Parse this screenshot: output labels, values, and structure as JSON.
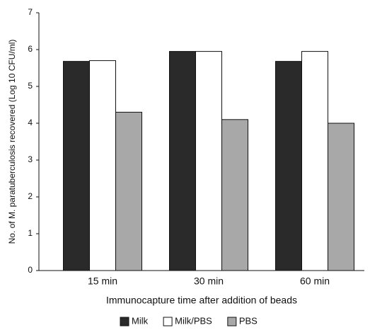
{
  "chart_data": {
    "type": "bar",
    "ylabel": "No. of M. paratuberculosis recovered (Log 10 CFU/ml)",
    "xlabel": "Immunocapture time after addition of beads",
    "categories": [
      "15 min",
      "30 min",
      "60 min"
    ],
    "series": [
      {
        "name": "Milk",
        "color": "#2a2a2a",
        "values": [
          5.68,
          5.95,
          5.68
        ]
      },
      {
        "name": "Milk/PBS",
        "color": "#ffffff",
        "values": [
          5.7,
          5.95,
          5.95
        ]
      },
      {
        "name": "PBS",
        "color": "#a8a8a8",
        "values": [
          4.3,
          4.1,
          4.0
        ]
      }
    ],
    "ylim": [
      0,
      7
    ],
    "yticks": [
      0,
      1,
      2,
      3,
      4,
      5,
      6,
      7
    ],
    "grid": false,
    "legend": "bottom"
  }
}
